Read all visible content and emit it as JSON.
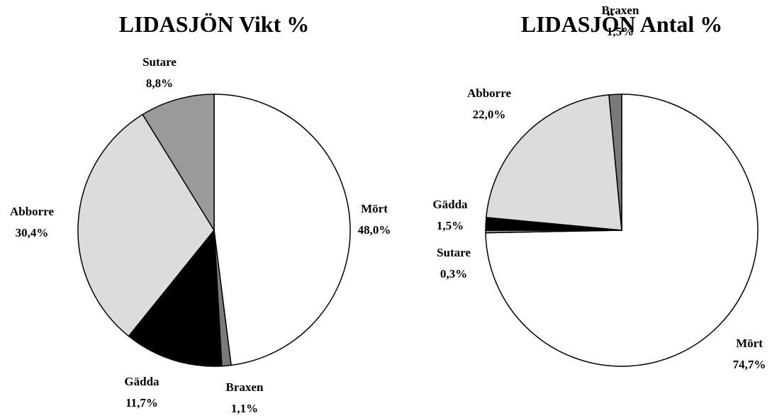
{
  "chart_data": [
    {
      "type": "pie",
      "title": "LIDASJÖN Vikt %",
      "categories": [
        "Mört",
        "Braxen",
        "Gädda",
        "Abborre",
        "Sutare"
      ],
      "values": [
        48.0,
        1.1,
        11.7,
        30.4,
        8.8
      ],
      "value_labels": [
        "48,0%",
        "1,1%",
        "11,7%",
        "30,4%",
        "8,8%"
      ],
      "colors": [
        "#ffffff",
        "#7a7a7a",
        "#000000",
        "#dcdcdc",
        "#9a9a9a"
      ]
    },
    {
      "type": "pie",
      "title": "LIDASJÖN Antal %",
      "categories": [
        "Mört",
        "Sutare",
        "Gädda",
        "Abborre",
        "Braxen"
      ],
      "values": [
        74.7,
        0.3,
        1.5,
        22.0,
        1.5
      ],
      "value_labels": [
        "74,7%",
        "0,3%",
        "1,5%",
        "22,0%",
        "1,5%"
      ],
      "colors": [
        "#ffffff",
        "#9a9a9a",
        "#000000",
        "#dcdcdc",
        "#7a7a7a"
      ]
    }
  ]
}
